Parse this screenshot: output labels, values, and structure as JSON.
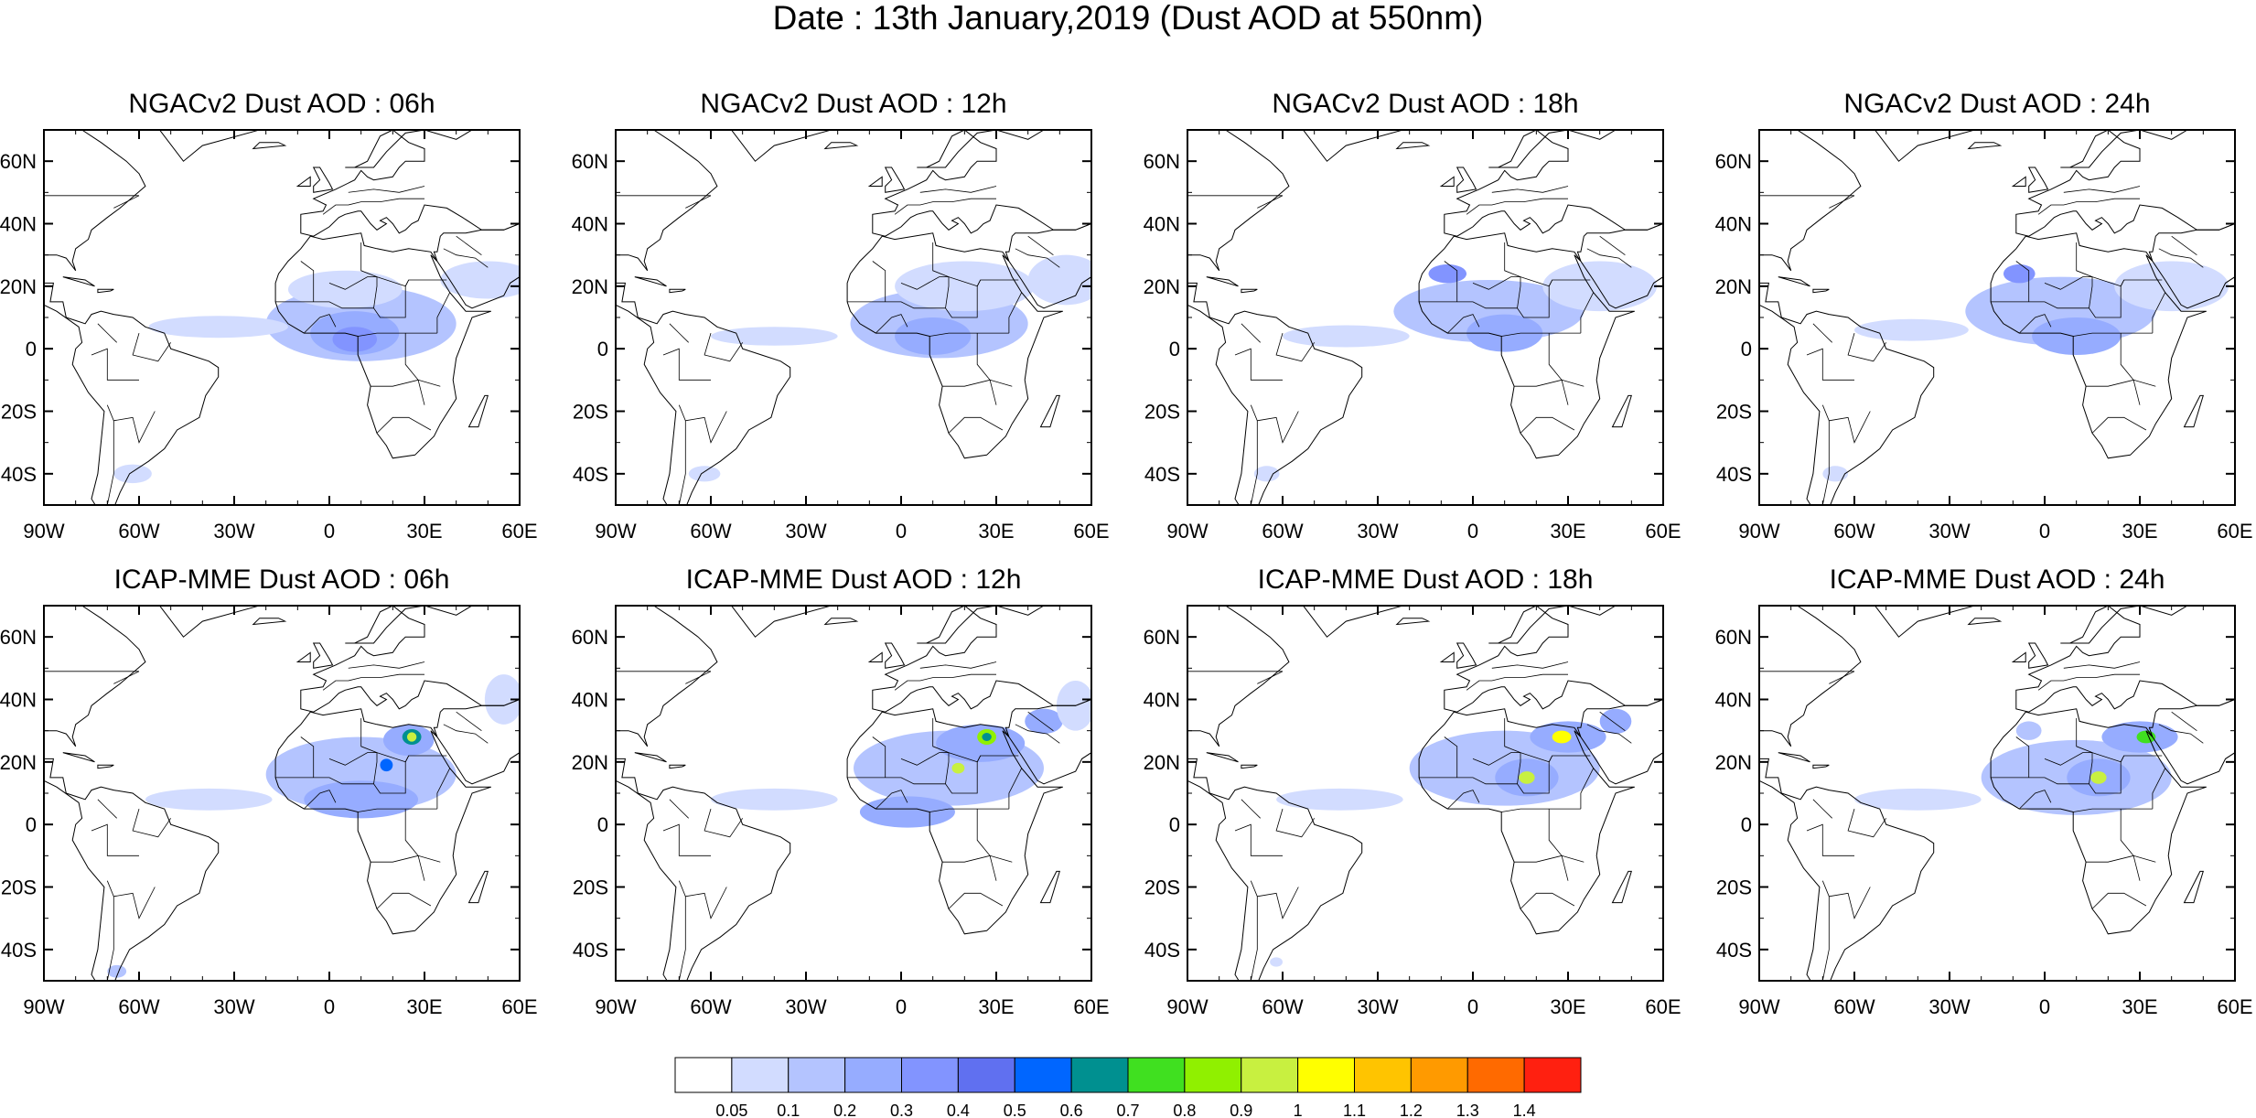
{
  "title": "Date : 13th January,2019 (Dust AOD at 550nm)",
  "panels": [
    {
      "title": "NGACv2 Dust AOD : 06h",
      "model": "NGACv2",
      "hour": 6
    },
    {
      "title": "NGACv2 Dust AOD : 12h",
      "model": "NGACv2",
      "hour": 12
    },
    {
      "title": "NGACv2 Dust AOD : 18h",
      "model": "NGACv2",
      "hour": 18
    },
    {
      "title": "NGACv2 Dust AOD : 24h",
      "model": "NGACv2",
      "hour": 24
    },
    {
      "title": "ICAP-MME Dust AOD : 06h",
      "model": "ICAP-MME",
      "hour": 6
    },
    {
      "title": "ICAP-MME Dust AOD : 12h",
      "model": "ICAP-MME",
      "hour": 12
    },
    {
      "title": "ICAP-MME Dust AOD : 18h",
      "model": "ICAP-MME",
      "hour": 18
    },
    {
      "title": "ICAP-MME Dust AOD : 24h",
      "model": "ICAP-MME",
      "hour": 24
    }
  ],
  "map_extent": {
    "lon": [
      -90,
      60
    ],
    "lat": [
      -50,
      70
    ]
  },
  "x_ticks": [
    {
      "value": -90,
      "label": "90W"
    },
    {
      "value": -60,
      "label": "60W"
    },
    {
      "value": -30,
      "label": "30W"
    },
    {
      "value": 0,
      "label": "0"
    },
    {
      "value": 30,
      "label": "30E"
    },
    {
      "value": 60,
      "label": "60E"
    }
  ],
  "y_ticks": [
    {
      "value": 60,
      "label": "60N"
    },
    {
      "value": 40,
      "label": "40N"
    },
    {
      "value": 20,
      "label": "20N"
    },
    {
      "value": 0,
      "label": "0"
    },
    {
      "value": -20,
      "label": "20S"
    },
    {
      "value": -40,
      "label": "40S"
    }
  ],
  "colorbar": {
    "labels": [
      "0.05",
      "0.1",
      "0.2",
      "0.3",
      "0.4",
      "0.5",
      "0.6",
      "0.7",
      "0.8",
      "0.9",
      "1",
      "1.1",
      "1.2",
      "1.3",
      "1.4"
    ],
    "colors": [
      "#ffffff",
      "#d2dcff",
      "#b4c4ff",
      "#96acff",
      "#8294ff",
      "#6070f0",
      "#0066ff",
      "#009090",
      "#40e020",
      "#90f000",
      "#c8f040",
      "#ffff00",
      "#ffc400",
      "#ff9a00",
      "#ff6a00",
      "#ff2010"
    ]
  },
  "plumes": [
    [
      {
        "lon": 10,
        "lat": 8,
        "rx": 30,
        "ry": 12,
        "level": 2
      },
      {
        "lon": 8,
        "lat": 5,
        "rx": 14,
        "ry": 7,
        "level": 3
      },
      {
        "lon": 8,
        "lat": 3,
        "rx": 7,
        "ry": 4,
        "level": 4
      },
      {
        "lon": -35,
        "lat": 7,
        "rx": 22,
        "ry": 3.5,
        "level": 1
      },
      {
        "lon": 5,
        "lat": 19,
        "rx": 18,
        "ry": 6,
        "level": 1
      },
      {
        "lon": 50,
        "lat": 22,
        "rx": 15,
        "ry": 6,
        "level": 1
      },
      {
        "lon": -62,
        "lat": -40,
        "rx": 6,
        "ry": 3,
        "level": 1
      }
    ],
    [
      {
        "lon": 12,
        "lat": 8,
        "rx": 28,
        "ry": 11,
        "level": 2
      },
      {
        "lon": 10,
        "lat": 4,
        "rx": 12,
        "ry": 6,
        "level": 3
      },
      {
        "lon": -40,
        "lat": 4,
        "rx": 20,
        "ry": 3,
        "level": 1
      },
      {
        "lon": 20,
        "lat": 20,
        "rx": 22,
        "ry": 8,
        "level": 1
      },
      {
        "lon": 52,
        "lat": 22,
        "rx": 12,
        "ry": 8,
        "level": 1
      },
      {
        "lon": -62,
        "lat": -40,
        "rx": 5,
        "ry": 2.5,
        "level": 1
      }
    ],
    [
      {
        "lon": 5,
        "lat": 12,
        "rx": 30,
        "ry": 10,
        "level": 2
      },
      {
        "lon": 10,
        "lat": 5,
        "rx": 12,
        "ry": 6,
        "level": 3
      },
      {
        "lon": -8,
        "lat": 24,
        "rx": 6,
        "ry": 3,
        "level": 4
      },
      {
        "lon": -40,
        "lat": 4,
        "rx": 20,
        "ry": 3.5,
        "level": 1
      },
      {
        "lon": 40,
        "lat": 20,
        "rx": 18,
        "ry": 8,
        "level": 1
      },
      {
        "lon": -65,
        "lat": -40,
        "rx": 4,
        "ry": 2.5,
        "level": 1
      }
    ],
    [
      {
        "lon": 5,
        "lat": 12,
        "rx": 30,
        "ry": 11,
        "level": 2
      },
      {
        "lon": 10,
        "lat": 4,
        "rx": 14,
        "ry": 6,
        "level": 3
      },
      {
        "lon": -8,
        "lat": 24,
        "rx": 5,
        "ry": 3,
        "level": 4
      },
      {
        "lon": -42,
        "lat": 6,
        "rx": 18,
        "ry": 3.5,
        "level": 1
      },
      {
        "lon": 40,
        "lat": 20,
        "rx": 18,
        "ry": 8,
        "level": 1
      },
      {
        "lon": -66,
        "lat": -40,
        "rx": 4,
        "ry": 2.5,
        "level": 1
      }
    ],
    [
      {
        "lon": 10,
        "lat": 16,
        "rx": 30,
        "ry": 12,
        "level": 2
      },
      {
        "lon": 10,
        "lat": 8,
        "rx": 18,
        "ry": 6,
        "level": 3
      },
      {
        "lon": 25,
        "lat": 27,
        "rx": 8,
        "ry": 5,
        "level": 3
      },
      {
        "lon": 26,
        "lat": 28,
        "rx": 3,
        "ry": 2.5,
        "level": 7
      },
      {
        "lon": 26,
        "lat": 28,
        "rx": 1.5,
        "ry": 1.5,
        "level": 10
      },
      {
        "lon": 18,
        "lat": 19,
        "rx": 2,
        "ry": 2,
        "level": 6
      },
      {
        "lon": -38,
        "lat": 8,
        "rx": 20,
        "ry": 3.5,
        "level": 1
      },
      {
        "lon": 55,
        "lat": 40,
        "rx": 6,
        "ry": 8,
        "level": 1
      },
      {
        "lon": -67,
        "lat": -47,
        "rx": 3,
        "ry": 2,
        "level": 2
      }
    ],
    [
      {
        "lon": 15,
        "lat": 18,
        "rx": 30,
        "ry": 12,
        "level": 2
      },
      {
        "lon": 25,
        "lat": 26,
        "rx": 14,
        "ry": 6,
        "level": 3
      },
      {
        "lon": 27,
        "lat": 28,
        "rx": 3,
        "ry": 2.5,
        "level": 9
      },
      {
        "lon": 27,
        "lat": 28,
        "rx": 1.5,
        "ry": 1.3,
        "level": 7
      },
      {
        "lon": 18,
        "lat": 18,
        "rx": 2,
        "ry": 1.7,
        "level": 10
      },
      {
        "lon": 45,
        "lat": 33,
        "rx": 6,
        "ry": 4,
        "level": 3
      },
      {
        "lon": 2,
        "lat": 4,
        "rx": 15,
        "ry": 5,
        "level": 3
      },
      {
        "lon": -40,
        "lat": 8,
        "rx": 20,
        "ry": 3.5,
        "level": 1
      },
      {
        "lon": 55,
        "lat": 38,
        "rx": 6,
        "ry": 8,
        "level": 1
      }
    ],
    [
      {
        "lon": 10,
        "lat": 18,
        "rx": 30,
        "ry": 12,
        "level": 2
      },
      {
        "lon": 17,
        "lat": 15,
        "rx": 10,
        "ry": 6,
        "level": 3
      },
      {
        "lon": 17,
        "lat": 15,
        "rx": 2.5,
        "ry": 2,
        "level": 10
      },
      {
        "lon": 30,
        "lat": 28,
        "rx": 12,
        "ry": 5,
        "level": 3
      },
      {
        "lon": 28,
        "lat": 28,
        "rx": 3,
        "ry": 2,
        "level": 11
      },
      {
        "lon": 45,
        "lat": 33,
        "rx": 5,
        "ry": 4,
        "level": 3
      },
      {
        "lon": -42,
        "lat": 8,
        "rx": 20,
        "ry": 3.5,
        "level": 1
      },
      {
        "lon": -62,
        "lat": -44,
        "rx": 2,
        "ry": 1.5,
        "level": 1
      }
    ],
    [
      {
        "lon": 10,
        "lat": 15,
        "rx": 30,
        "ry": 12,
        "level": 2
      },
      {
        "lon": 17,
        "lat": 15,
        "rx": 10,
        "ry": 6,
        "level": 3
      },
      {
        "lon": 17,
        "lat": 15,
        "rx": 2.5,
        "ry": 2,
        "level": 10
      },
      {
        "lon": 30,
        "lat": 28,
        "rx": 12,
        "ry": 5,
        "level": 3
      },
      {
        "lon": 32,
        "lat": 28,
        "rx": 3,
        "ry": 2,
        "level": 8
      },
      {
        "lon": -5,
        "lat": 30,
        "rx": 4,
        "ry": 3,
        "level": 2
      },
      {
        "lon": -40,
        "lat": 8,
        "rx": 20,
        "ry": 3.5,
        "level": 1
      }
    ]
  ]
}
